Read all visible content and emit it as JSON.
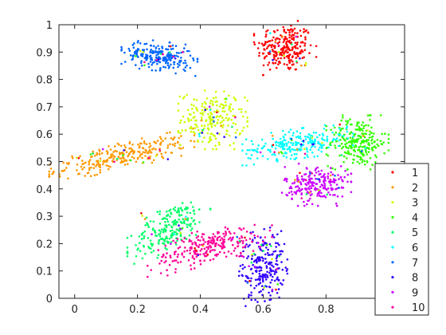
{
  "chart_data": {
    "type": "scatter",
    "title": "",
    "xlabel": "",
    "ylabel": "",
    "xlim": [
      -0.05,
      1.05
    ],
    "ylim": [
      0,
      1
    ],
    "x_ticks": [
      0,
      0.2,
      0.4,
      0.6,
      0.8
    ],
    "x_tick_labels": [
      "0",
      "0.2",
      "0.4",
      "0.6",
      "0.8"
    ],
    "y_ticks": [
      0,
      0.1,
      0.2,
      0.3,
      0.4,
      0.5,
      0.6,
      0.7,
      0.8,
      0.9,
      1
    ],
    "y_tick_labels": [
      "0",
      "0.1",
      "0.2",
      "0.3",
      "0.4",
      "0.5",
      "0.6",
      "0.7",
      "0.8",
      "0.9",
      "1"
    ],
    "grid": false,
    "legend": {
      "placement": "right-bottom"
    },
    "series": [
      {
        "name": "1",
        "color": "#ff0000",
        "clusters": [
          {
            "cx": 0.67,
            "cy": 0.915,
            "sx": 0.045,
            "sy": 0.045,
            "n": 230
          }
        ]
      },
      {
        "name": "2",
        "color": "#ff9900",
        "clusters": [
          {
            "cx": 0.15,
            "cy": 0.52,
            "sx": 0.105,
            "sy": 0.022,
            "n": 260,
            "tilt": 0.25
          }
        ]
      },
      {
        "name": "3",
        "color": "#ccff00",
        "clusters": [
          {
            "cx": 0.44,
            "cy": 0.655,
            "sx": 0.05,
            "sy": 0.05,
            "n": 210
          }
        ]
      },
      {
        "name": "4",
        "color": "#33ff00",
        "clusters": [
          {
            "cx": 0.9,
            "cy": 0.57,
            "sx": 0.045,
            "sy": 0.045,
            "n": 240
          }
        ]
      },
      {
        "name": "5",
        "color": "#00ff66",
        "clusters": [
          {
            "cx": 0.3,
            "cy": 0.255,
            "sx": 0.06,
            "sy": 0.04,
            "n": 210,
            "tilt": 0.6
          }
        ]
      },
      {
        "name": "6",
        "color": "#00ffff",
        "clusters": [
          {
            "cx": 0.71,
            "cy": 0.565,
            "sx": 0.08,
            "sy": 0.025,
            "n": 230,
            "tilt": 0.15
          }
        ]
      },
      {
        "name": "7",
        "color": "#0066ff",
        "clusters": [
          {
            "cx": 0.27,
            "cy": 0.885,
            "sx": 0.055,
            "sy": 0.025,
            "n": 220,
            "tilt": -0.15
          }
        ]
      },
      {
        "name": "8",
        "color": "#3300ff",
        "clusters": [
          {
            "cx": 0.6,
            "cy": 0.12,
            "sx": 0.035,
            "sy": 0.06,
            "n": 220,
            "tilt": 0.3
          }
        ]
      },
      {
        "name": "9",
        "color": "#cc00ff",
        "clusters": [
          {
            "cx": 0.77,
            "cy": 0.415,
            "sx": 0.05,
            "sy": 0.035,
            "n": 210
          }
        ]
      },
      {
        "name": "10",
        "color": "#ff0099",
        "clusters": [
          {
            "cx": 0.43,
            "cy": 0.19,
            "sx": 0.09,
            "sy": 0.03,
            "n": 240,
            "tilt": 0.3
          }
        ]
      }
    ]
  }
}
